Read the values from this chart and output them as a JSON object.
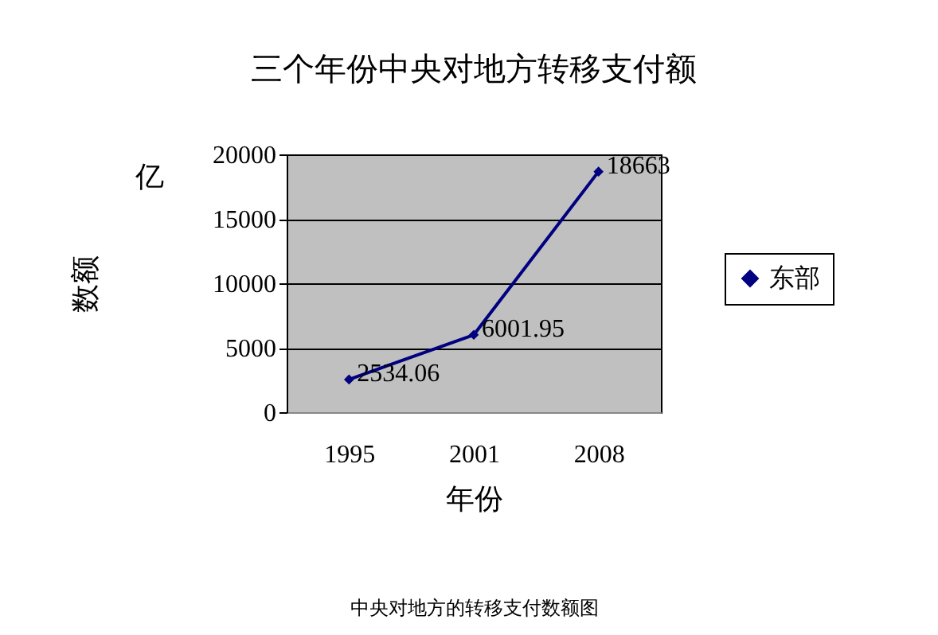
{
  "chart_data": {
    "type": "line",
    "title": "三个年份中央对地方转移支付额",
    "xlabel": "年份",
    "ylabel": "数额",
    "annotations": [
      "亿",
      "中央对地方的转移支付数额图"
    ],
    "categories": [
      "1995",
      "2001",
      "2008"
    ],
    "series": [
      {
        "name": "东部",
        "color": "#000080",
        "values": [
          2534.06,
          6001.95,
          18663
        ]
      }
    ],
    "ylim": [
      0,
      20000
    ],
    "yticks": [
      0,
      5000,
      10000,
      15000,
      20000
    ],
    "data_labels": true,
    "grid": "y",
    "legend": "right",
    "marker": "diamond",
    "line_style": "solid"
  }
}
